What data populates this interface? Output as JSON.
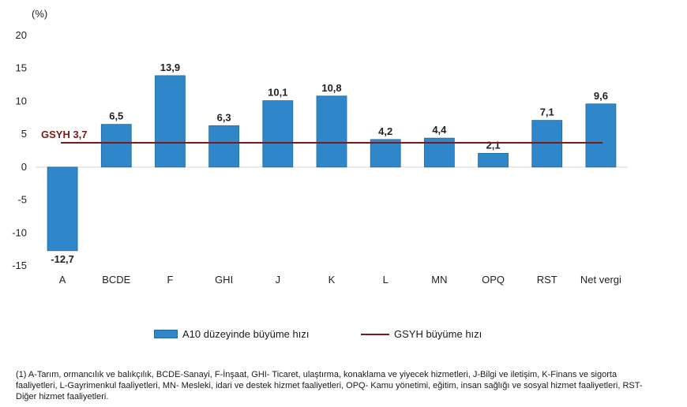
{
  "chart_data": {
    "type": "bar",
    "unit_label": "(%)",
    "categories": [
      "A",
      "BCDE",
      "F",
      "GHI",
      "J",
      "K",
      "L",
      "MN",
      "OPQ",
      "RST",
      "Net vergi"
    ],
    "series": [
      {
        "name": "A10 düzeyinde büyüme hızı",
        "values": [
          -12.7,
          6.5,
          13.9,
          6.3,
          10.1,
          10.8,
          4.2,
          4.4,
          2.1,
          7.1,
          9.6
        ],
        "labels": [
          "-12,7",
          "6,5",
          "13,9",
          "6,3",
          "10,1",
          "10,8",
          "4,2",
          "4,4",
          "2,1",
          "7,1",
          "9,6"
        ],
        "color": "#2f86c9"
      }
    ],
    "reference_line": {
      "name": "GSYH büyüme hızı",
      "value": 3.7,
      "label": "GSYH 3,7",
      "color": "#7a1a1a"
    },
    "ylim": [
      -15,
      20
    ],
    "yticks": [
      20,
      15,
      10,
      5,
      0,
      -5,
      -10,
      -15
    ],
    "grid": false,
    "legend_position": "bottom"
  },
  "footnote": "(1) A-Tarım, ormancılık ve balıkçılık, BCDE-Sanayi, F-İnşaat, GHI- Ticaret, ulaştırma, konaklama ve yiyecek hizmetleri, J-Bilgi ve iletişim, K-Finans ve sigorta faaliyetleri, L-Gayrimenkul faaliyetleri, MN- Mesleki, idari ve destek hizmet faaliyetleri, OPQ- Kamu yönetimi, eğitim, insan sağlığı ve sosyal hizmet faaliyetleri, RST- Diğer hizmet faaliyetleri."
}
